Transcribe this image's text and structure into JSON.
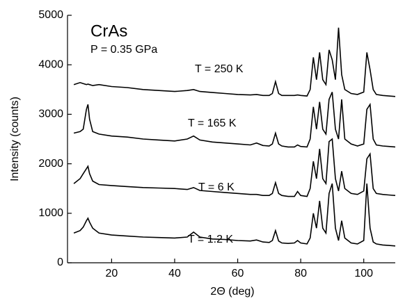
{
  "chart_data": {
    "type": "line",
    "annotations": [
      "CrAs",
      "P = 0.35 GPa"
    ],
    "xlabel": "2Θ (deg)",
    "ylabel": "Intensity (counts)",
    "xlim": [
      6,
      110
    ],
    "ylim": [
      0,
      5000
    ],
    "xticks": [
      20,
      40,
      60,
      80,
      100
    ],
    "yticks": [
      0,
      1000,
      2000,
      3000,
      4000,
      5000
    ],
    "x": [
      8,
      10,
      11,
      12,
      12.5,
      13,
      14,
      16,
      20,
      25,
      30,
      35,
      40,
      44,
      46,
      48,
      52,
      56,
      60,
      64,
      66,
      68,
      70,
      71,
      72,
      73,
      74,
      76,
      78,
      79,
      80,
      82,
      83,
      84,
      85,
      86,
      87,
      88,
      89,
      90,
      91,
      92,
      93,
      94,
      96,
      98,
      100,
      101,
      102,
      103,
      104,
      106,
      108,
      110
    ],
    "series": [
      {
        "name": "T = 1.2 K",
        "color": "#000000",
        "values": [
          600,
          650,
          720,
          850,
          900,
          820,
          700,
          600,
          560,
          540,
          520,
          510,
          500,
          520,
          620,
          520,
          480,
          470,
          450,
          440,
          460,
          420,
          410,
          450,
          650,
          440,
          400,
          390,
          400,
          450,
          400,
          380,
          500,
          1000,
          700,
          1250,
          700,
          600,
          1400,
          1600,
          700,
          450,
          850,
          500,
          400,
          380,
          450,
          1600,
          700,
          420,
          380,
          360,
          350,
          340
        ]
      },
      {
        "name": "T = 6 K",
        "color": "#000000",
        "values": [
          1600,
          1700,
          1800,
          1900,
          1950,
          1800,
          1650,
          1580,
          1560,
          1540,
          1520,
          1510,
          1500,
          1480,
          1520,
          1460,
          1440,
          1420,
          1400,
          1380,
          1380,
          1360,
          1360,
          1400,
          1620,
          1400,
          1360,
          1340,
          1340,
          1440,
          1360,
          1340,
          1500,
          2050,
          1700,
          2300,
          1700,
          1600,
          2450,
          2500,
          1700,
          1450,
          1850,
          1500,
          1400,
          1380,
          1450,
          2100,
          2200,
          1500,
          1400,
          1380,
          1370,
          1360
        ]
      },
      {
        "name": "T = 165 K",
        "color": "#000000",
        "values": [
          2620,
          2650,
          2700,
          3100,
          3200,
          2900,
          2650,
          2600,
          2560,
          2540,
          2500,
          2480,
          2460,
          2500,
          2560,
          2480,
          2440,
          2420,
          2400,
          2380,
          2420,
          2370,
          2360,
          2400,
          2620,
          2400,
          2360,
          2340,
          2340,
          2380,
          2350,
          2340,
          2500,
          3150,
          2700,
          3250,
          2700,
          2600,
          3300,
          3450,
          2700,
          2500,
          3300,
          2500,
          2400,
          2360,
          2400,
          3100,
          3200,
          2500,
          2380,
          2360,
          2350,
          2340
        ]
      },
      {
        "name": "T = 250 K",
        "color": "#000000",
        "values": [
          3600,
          3640,
          3620,
          3600,
          3610,
          3600,
          3580,
          3600,
          3560,
          3540,
          3500,
          3480,
          3460,
          3480,
          3500,
          3460,
          3440,
          3420,
          3400,
          3390,
          3400,
          3380,
          3380,
          3420,
          3660,
          3420,
          3380,
          3380,
          3380,
          3390,
          3380,
          3370,
          3500,
          4150,
          3700,
          4250,
          3700,
          3600,
          4300,
          4100,
          3700,
          4750,
          3800,
          3500,
          3420,
          3400,
          3450,
          4250,
          3900,
          3500,
          3400,
          3380,
          3370,
          3360
        ]
      }
    ]
  }
}
